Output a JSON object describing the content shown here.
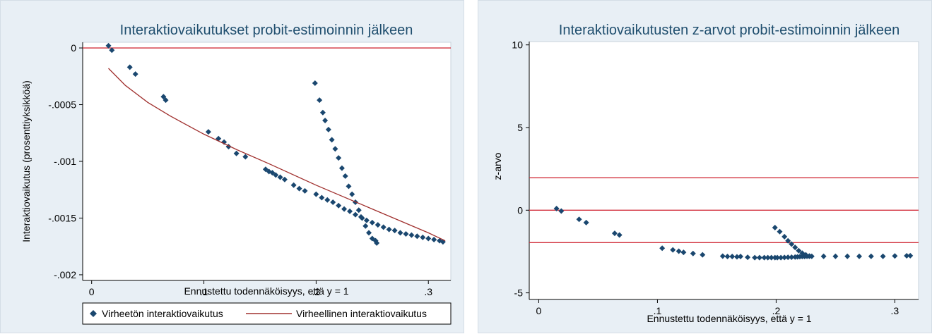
{
  "chart_data": [
    {
      "type": "scatter",
      "title": "Interaktiovaikutukset probit-estimoinnin jälkeen",
      "xlabel": "Ennustettu todennäköisyys, että y = 1",
      "ylabel": "Interaktiovaikutus (prosenttiyksikköä)",
      "xlim": [
        -0.008,
        0.32
      ],
      "ylim": [
        -0.00205,
        5e-05
      ],
      "xticks": [
        {
          "v": 0,
          "label": "0"
        },
        {
          "v": 0.1,
          "label": ".1"
        },
        {
          "v": 0.2,
          "label": ".2"
        },
        {
          "v": 0.3,
          "label": ".3"
        }
      ],
      "yticks": [
        {
          "v": 0,
          "label": "0"
        },
        {
          "v": -0.0005,
          "label": "-.0005"
        },
        {
          "v": -0.001,
          "label": "-.001"
        },
        {
          "v": -0.0015,
          "label": "-.0015"
        },
        {
          "v": -0.002,
          "label": "-.002"
        }
      ],
      "hlines": [
        {
          "y": 0,
          "color": "#d2303c"
        }
      ],
      "grid": false,
      "legend": {
        "position": "bottom",
        "entries": [
          {
            "label": "Virheetön interaktiovaikutus",
            "marker": "diamond",
            "color": "#1a476f"
          },
          {
            "label": "Virheellinen interaktiovaikutus",
            "marker": "line",
            "color": "#a0302e"
          }
        ]
      },
      "series": [
        {
          "name": "Virheetön interaktiovaikutus",
          "kind": "scatter",
          "color": "#1a476f",
          "x": [
            0.015,
            0.018,
            0.034,
            0.039,
            0.064,
            0.066,
            0.104,
            0.113,
            0.118,
            0.122,
            0.129,
            0.137,
            0.155,
            0.158,
            0.161,
            0.164,
            0.168,
            0.172,
            0.18,
            0.185,
            0.19,
            0.199,
            0.203,
            0.206,
            0.208,
            0.211,
            0.214,
            0.217,
            0.22,
            0.223,
            0.226,
            0.229,
            0.232,
            0.235,
            0.238,
            0.241,
            0.244,
            0.247,
            0.25,
            0.253,
            0.254,
            0.2,
            0.205,
            0.21,
            0.215,
            0.22,
            0.225,
            0.23,
            0.235,
            0.24,
            0.245,
            0.25,
            0.255,
            0.26,
            0.265,
            0.27,
            0.275,
            0.28,
            0.285,
            0.29,
            0.295,
            0.3,
            0.305,
            0.31,
            0.313
          ],
          "y": [
            2e-05,
            -2e-05,
            -0.00017,
            -0.00023,
            -0.00043,
            -0.00046,
            -0.00074,
            -0.0008,
            -0.00083,
            -0.00087,
            -0.00093,
            -0.00096,
            -0.00107,
            -0.00109,
            -0.0011,
            -0.00112,
            -0.00114,
            -0.00116,
            -0.00121,
            -0.00124,
            -0.00126,
            -0.00031,
            -0.00046,
            -0.00057,
            -0.00064,
            -0.00072,
            -0.00081,
            -0.00089,
            -0.00097,
            -0.00106,
            -0.00113,
            -0.00122,
            -0.00129,
            -0.00136,
            -0.00143,
            -0.0015,
            -0.00157,
            -0.00163,
            -0.00168,
            -0.0017,
            -0.00172,
            -0.00129,
            -0.00132,
            -0.00134,
            -0.00136,
            -0.00139,
            -0.00142,
            -0.00144,
            -0.00147,
            -0.00149,
            -0.00152,
            -0.00154,
            -0.00156,
            -0.00158,
            -0.0016,
            -0.00161,
            -0.00163,
            -0.00164,
            -0.00165,
            -0.00166,
            -0.00167,
            -0.00168,
            -0.00169,
            -0.0017,
            -0.00171
          ]
        },
        {
          "name": "Virheellinen interaktiovaikutus",
          "kind": "line",
          "color": "#a0302e",
          "x": [
            0.015,
            0.03,
            0.05,
            0.07,
            0.1,
            0.13,
            0.16,
            0.2,
            0.25,
            0.3,
            0.315
          ],
          "y": [
            -0.00018,
            -0.00033,
            -0.00048,
            -0.0006,
            -0.00076,
            -0.0009,
            -0.00103,
            -0.00121,
            -0.00142,
            -0.00163,
            -0.0017
          ]
        }
      ]
    },
    {
      "type": "scatter",
      "title": "Interaktiovaikutusten z-arvot probit-estimoinnin jälkeen",
      "xlabel": "Ennustettu todennäköisyys, että y = 1",
      "ylabel": "z-arvo",
      "xlim": [
        -0.008,
        0.32
      ],
      "ylim": [
        -5.4,
        10.2
      ],
      "xticks": [
        {
          "v": 0,
          "label": "0"
        },
        {
          "v": 0.1,
          "label": ".1"
        },
        {
          "v": 0.2,
          "label": ".2"
        },
        {
          "v": 0.3,
          "label": ".3"
        }
      ],
      "yticks": [
        {
          "v": 10,
          "label": "10"
        },
        {
          "v": 5,
          "label": "5"
        },
        {
          "v": 0,
          "label": "0"
        },
        {
          "v": -5,
          "label": "-5"
        }
      ],
      "hlines": [
        {
          "y": 1.96,
          "color": "#d2303c"
        },
        {
          "y": 0,
          "color": "#d2303c"
        },
        {
          "y": -1.96,
          "color": "#d2303c"
        }
      ],
      "grid": false,
      "series": [
        {
          "kind": "scatter",
          "color": "#1a476f",
          "x": [
            0.015,
            0.019,
            0.034,
            0.04,
            0.064,
            0.068,
            0.104,
            0.113,
            0.118,
            0.122,
            0.13,
            0.138,
            0.155,
            0.159,
            0.163,
            0.167,
            0.17,
            0.176,
            0.182,
            0.186,
            0.19,
            0.193,
            0.196,
            0.199,
            0.201,
            0.204,
            0.207,
            0.21,
            0.213,
            0.216,
            0.218,
            0.22,
            0.222,
            0.224,
            0.226,
            0.228,
            0.23,
            0.24,
            0.25,
            0.26,
            0.27,
            0.28,
            0.29,
            0.3,
            0.31,
            0.313
          ],
          "y": [
            0.1,
            -0.05,
            -0.55,
            -0.75,
            -1.4,
            -1.5,
            -2.3,
            -2.4,
            -2.48,
            -2.55,
            -2.62,
            -2.7,
            -2.78,
            -2.8,
            -2.8,
            -2.82,
            -2.8,
            -2.85,
            -2.87,
            -2.87,
            -2.87,
            -2.87,
            -2.87,
            -2.87,
            -2.87,
            -2.87,
            -2.86,
            -2.85,
            -2.84,
            -2.83,
            -2.82,
            -2.81,
            -2.8,
            -2.8,
            -2.79,
            -2.79,
            -2.79,
            -2.79,
            -2.79,
            -2.79,
            -2.79,
            -2.79,
            -2.79,
            -2.77,
            -2.76,
            -2.75
          ]
        },
        {
          "kind": "scatter",
          "color": "#1a476f",
          "x": [
            0.199,
            0.203,
            0.207,
            0.21,
            0.213,
            0.216,
            0.219,
            0.222,
            0.225,
            0.228
          ],
          "y": [
            -1.05,
            -1.3,
            -1.6,
            -1.85,
            -2.05,
            -2.25,
            -2.45,
            -2.6,
            -2.7,
            -2.77
          ]
        }
      ]
    }
  ]
}
